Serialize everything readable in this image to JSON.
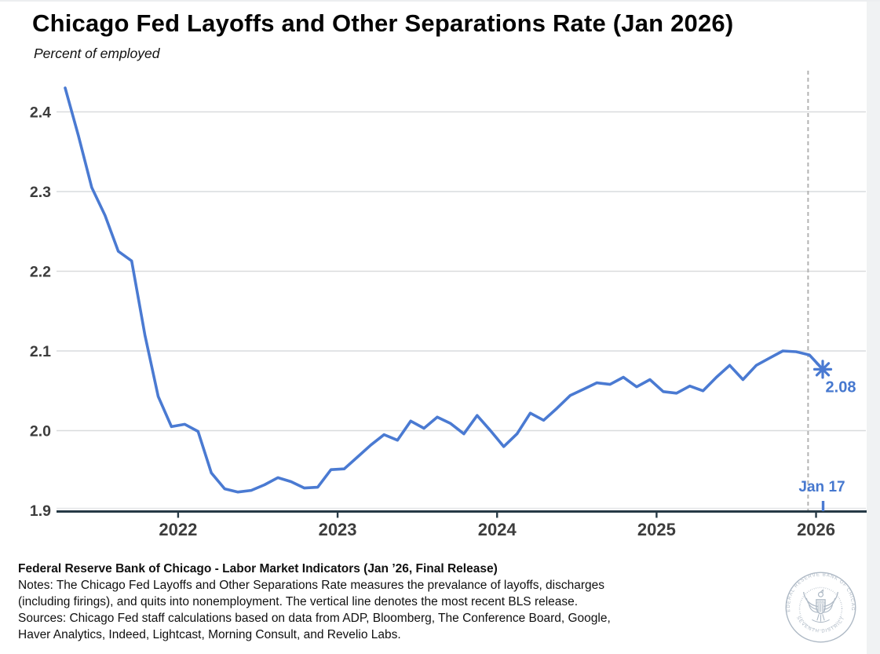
{
  "header": {
    "title": "Chicago Fed Layoffs and Other Separations Rate (Jan 2026)",
    "subtitle": "Percent of employed"
  },
  "chart_data": {
    "type": "line",
    "title": "Chicago Fed Layoffs and Other Separations Rate (Jan 2026)",
    "ylabel": "Percent of employed",
    "frequency": "monthly",
    "grid": "horizontal",
    "ylim": [
      1.9,
      2.45
    ],
    "y_ticks": [
      2.4,
      2.3,
      2.2,
      2.1,
      2.0,
      1.9
    ],
    "x_ticks": [
      "2022",
      "2023",
      "2024",
      "2025",
      "2026"
    ],
    "x": [
      "Apr 2021",
      "May 2021",
      "Jun 2021",
      "Jul 2021",
      "Aug 2021",
      "Sep 2021",
      "Oct 2021",
      "Nov 2021",
      "Dec 2021",
      "Jan 2022",
      "Feb 2022",
      "Mar 2022",
      "Apr 2022",
      "May 2022",
      "Jun 2022",
      "Jul 2022",
      "Aug 2022",
      "Sep 2022",
      "Oct 2022",
      "Nov 2022",
      "Dec 2022",
      "Jan 2023",
      "Feb 2023",
      "Mar 2023",
      "Apr 2023",
      "May 2023",
      "Jun 2023",
      "Jul 2023",
      "Aug 2023",
      "Sep 2023",
      "Oct 2023",
      "Nov 2023",
      "Dec 2023",
      "Jan 2024",
      "Feb 2024",
      "Mar 2024",
      "Apr 2024",
      "May 2024",
      "Jun 2024",
      "Jul 2024",
      "Aug 2024",
      "Sep 2024",
      "Oct 2024",
      "Nov 2024",
      "Dec 2024",
      "Jan 2025",
      "Feb 2025",
      "Mar 2025",
      "Apr 2025",
      "May 2025",
      "Jun 2025",
      "Jul 2025",
      "Aug 2025",
      "Sep 2025",
      "Oct 2025",
      "Nov 2025",
      "Dec 2025",
      "Jan 2026"
    ],
    "series": [
      {
        "name": "Layoffs and Other Separations Rate",
        "values": [
          2.43,
          2.37,
          2.305,
          2.27,
          2.225,
          2.213,
          2.12,
          2.043,
          2.005,
          2.008,
          1.999,
          1.947,
          1.927,
          1.923,
          1.925,
          1.932,
          1.941,
          1.936,
          1.928,
          1.929,
          1.951,
          1.952,
          1.967,
          1.982,
          1.995,
          1.988,
          2.012,
          2.003,
          2.017,
          2.009,
          1.996,
          2.019,
          2.0,
          1.98,
          1.996,
          2.022,
          2.013,
          2.028,
          2.044,
          2.052,
          2.06,
          2.058,
          2.067,
          2.055,
          2.064,
          2.049,
          2.047,
          2.056,
          2.05,
          2.067,
          2.082,
          2.064,
          2.082,
          2.091,
          2.1,
          2.099,
          2.095,
          2.077
        ]
      }
    ],
    "end_marker": {
      "label": "2.08",
      "value": 2.08,
      "symbol": "asterisk"
    },
    "vline": {
      "month_index": 55.9,
      "label": "Jan 17",
      "meaning": "most recent BLS release"
    }
  },
  "footer": {
    "source_line": "Federal Reserve Bank of Chicago - Labor Market Indicators (Jan ’26, Final Release)",
    "notes_line1": "Notes: The Chicago Fed Layoffs and Other Separations Rate measures the prevalance of layoffs, discharges",
    "notes_line2": "(including firings), and quits into nonemployment. The vertical line denotes the most recent BLS release.",
    "sources_line1": "Sources: Chicago Fed staff calculations based on data from ADP, Bloomberg, The Conference Board, Google,",
    "sources_line2": "Haver Analytics, Indeed, Lightcast, Morning Consult, and Revelio Labs."
  },
  "logo": {
    "top_text": "FEDERAL RESERVE BANK OF CHICAGO",
    "bottom_text": "SEVENTH DISTRICT"
  },
  "colors": {
    "line": "#4a7ad2",
    "annotation": "#4678cf",
    "grid": "#d9dbdd",
    "grid_light": "#e3e5e7",
    "axis": "#263945",
    "tick_label": "#3d3d3d",
    "dashed": "#b3b3b3",
    "logo": "#aeb9c5"
  }
}
